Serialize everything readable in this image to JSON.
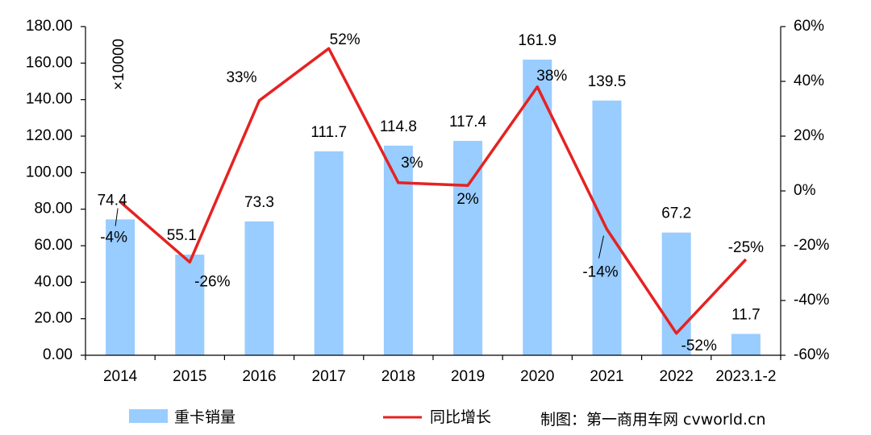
{
  "chart_data": {
    "type": "bar",
    "categories": [
      "2014",
      "2015",
      "2016",
      "2017",
      "2018",
      "2019",
      "2020",
      "2021",
      "2022",
      "2023.1-2"
    ],
    "series": [
      {
        "name": "重卡销量",
        "kind": "bar",
        "axis": "left",
        "values": [
          74.4,
          55.1,
          73.3,
          111.7,
          114.8,
          117.4,
          161.9,
          139.5,
          67.2,
          11.7
        ],
        "color": "#99CCFF"
      },
      {
        "name": "同比增长",
        "kind": "line",
        "axis": "right",
        "values": [
          -4,
          -26,
          33,
          52,
          3,
          2,
          38,
          -14,
          -52,
          -25
        ],
        "color": "#E52222"
      }
    ],
    "bar_labels": [
      "74.4",
      "55.1",
      "73.3",
      "111.7",
      "114.8",
      "117.4",
      "161.9",
      "139.5",
      "67.2",
      "11.7"
    ],
    "line_labels": [
      "-4%",
      "-26%",
      "33%",
      "52%",
      "3%",
      "2%",
      "38%",
      "-14%",
      "-52%",
      "-25%"
    ],
    "y_left": {
      "lim": [
        0,
        180
      ],
      "ticks": [
        "0.00",
        "20.00",
        "40.00",
        "60.00",
        "80.00",
        "100.00",
        "120.00",
        "140.00",
        "160.00",
        "180.00"
      ],
      "unit": "×10000"
    },
    "y_right": {
      "lim": [
        -60,
        60
      ],
      "ticks": [
        "-60%",
        "-40%",
        "-20%",
        "0%",
        "20%",
        "40%",
        "60%"
      ]
    },
    "grid": false,
    "legend_position": "bottom"
  },
  "source_note": "制图：第一商用车网 cvworld.cn"
}
